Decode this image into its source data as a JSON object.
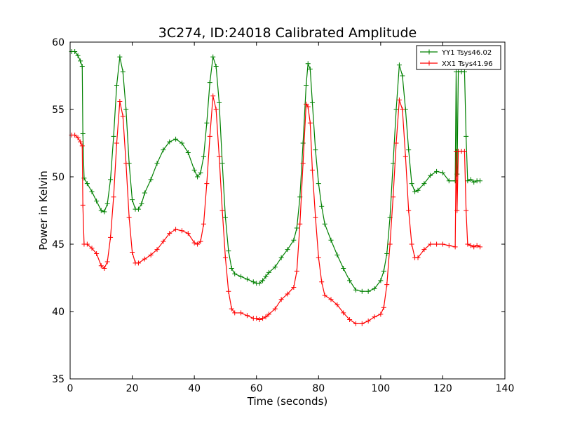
{
  "chart_data": {
    "type": "line",
    "title": "3C274, ID:24018 Calibrated Amplitude",
    "xlabel": "Time (seconds)",
    "ylabel": "Power in Kelvin",
    "xlim": [
      0,
      140
    ],
    "ylim": [
      35,
      60
    ],
    "xticks": [
      0,
      20,
      40,
      60,
      80,
      100,
      120,
      140
    ],
    "yticks": [
      35,
      40,
      45,
      50,
      55,
      60
    ],
    "grid": false,
    "legend_position": "top-right",
    "marker": "+",
    "series": [
      {
        "name": "YY1 Tsys46.02",
        "color": "#008000",
        "points": [
          [
            0.5,
            59.3
          ],
          [
            1.5,
            59.3
          ],
          [
            2.5,
            59.0
          ],
          [
            3.3,
            58.6
          ],
          [
            3.9,
            58.2
          ],
          [
            4.1,
            53.2
          ],
          [
            4.5,
            49.9
          ],
          [
            5.5,
            49.5
          ],
          [
            7,
            48.9
          ],
          [
            8.5,
            48.2
          ],
          [
            10,
            47.5
          ],
          [
            11,
            47.4
          ],
          [
            12,
            48.0
          ],
          [
            13,
            49.8
          ],
          [
            14,
            53.0
          ],
          [
            15,
            56.8
          ],
          [
            16,
            58.9
          ],
          [
            17,
            57.8
          ],
          [
            18,
            55.0
          ],
          [
            19,
            51.0
          ],
          [
            20,
            48.3
          ],
          [
            21,
            47.6
          ],
          [
            22,
            47.6
          ],
          [
            23,
            48.0
          ],
          [
            24,
            48.8
          ],
          [
            26,
            49.8
          ],
          [
            28,
            51.0
          ],
          [
            30,
            52.0
          ],
          [
            32,
            52.6
          ],
          [
            34,
            52.8
          ],
          [
            36,
            52.5
          ],
          [
            38,
            51.8
          ],
          [
            40,
            50.5
          ],
          [
            41,
            50.0
          ],
          [
            42,
            50.3
          ],
          [
            43,
            51.5
          ],
          [
            44,
            54.0
          ],
          [
            45,
            57.0
          ],
          [
            46,
            58.9
          ],
          [
            47,
            58.2
          ],
          [
            48,
            55.5
          ],
          [
            49,
            51.0
          ],
          [
            50,
            47.0
          ],
          [
            51,
            44.5
          ],
          [
            52,
            43.2
          ],
          [
            53,
            42.8
          ],
          [
            55,
            42.6
          ],
          [
            57,
            42.4
          ],
          [
            59,
            42.2
          ],
          [
            60,
            42.1
          ],
          [
            61,
            42.1
          ],
          [
            62,
            42.3
          ],
          [
            63,
            42.6
          ],
          [
            64,
            42.9
          ],
          [
            66,
            43.3
          ],
          [
            68,
            44.0
          ],
          [
            70,
            44.6
          ],
          [
            72,
            45.3
          ],
          [
            73,
            46.2
          ],
          [
            74,
            48.5
          ],
          [
            75,
            52.5
          ],
          [
            76,
            56.8
          ],
          [
            76.6,
            58.4
          ],
          [
            77.3,
            58.0
          ],
          [
            78,
            55.5
          ],
          [
            79,
            52.0
          ],
          [
            80,
            49.5
          ],
          [
            81,
            47.8
          ],
          [
            82,
            46.5
          ],
          [
            84,
            45.3
          ],
          [
            86,
            44.2
          ],
          [
            88,
            43.2
          ],
          [
            90,
            42.3
          ],
          [
            92,
            41.6
          ],
          [
            94,
            41.5
          ],
          [
            96,
            41.5
          ],
          [
            98,
            41.7
          ],
          [
            100,
            42.3
          ],
          [
            101,
            43.0
          ],
          [
            102,
            44.3
          ],
          [
            103,
            47.0
          ],
          [
            104,
            51.0
          ],
          [
            105,
            55.0
          ],
          [
            106,
            58.3
          ],
          [
            107,
            57.5
          ],
          [
            108,
            55.0
          ],
          [
            109,
            52.0
          ],
          [
            110,
            49.5
          ],
          [
            111,
            48.9
          ],
          [
            112,
            49.0
          ],
          [
            114,
            49.5
          ],
          [
            116,
            50.1
          ],
          [
            118,
            50.4
          ],
          [
            120,
            50.3
          ],
          [
            122,
            49.7
          ],
          [
            124,
            49.7
          ],
          [
            124.3,
            57.8
          ],
          [
            124.6,
            50.2
          ],
          [
            125,
            57.8
          ],
          [
            126,
            57.8
          ],
          [
            127,
            57.8
          ],
          [
            127.5,
            53.0
          ],
          [
            128,
            49.7
          ],
          [
            129,
            49.8
          ],
          [
            130,
            49.6
          ],
          [
            131,
            49.7
          ],
          [
            132,
            49.7
          ]
        ]
      },
      {
        "name": "XX1 Tsys41.96",
        "color": "#ff0000",
        "points": [
          [
            0.5,
            53.1
          ],
          [
            1.5,
            53.1
          ],
          [
            2.5,
            52.9
          ],
          [
            3.3,
            52.6
          ],
          [
            3.9,
            52.3
          ],
          [
            4.1,
            47.9
          ],
          [
            4.5,
            45.0
          ],
          [
            5.5,
            45.0
          ],
          [
            7,
            44.7
          ],
          [
            8.5,
            44.3
          ],
          [
            10,
            43.4
          ],
          [
            11,
            43.2
          ],
          [
            12,
            43.7
          ],
          [
            13,
            45.5
          ],
          [
            14,
            48.5
          ],
          [
            15,
            52.5
          ],
          [
            16,
            55.6
          ],
          [
            17,
            54.5
          ],
          [
            18,
            51.0
          ],
          [
            19,
            47.0
          ],
          [
            20,
            44.4
          ],
          [
            21,
            43.6
          ],
          [
            22,
            43.6
          ],
          [
            24,
            43.9
          ],
          [
            26,
            44.2
          ],
          [
            28,
            44.6
          ],
          [
            30,
            45.2
          ],
          [
            32,
            45.8
          ],
          [
            34,
            46.1
          ],
          [
            36,
            46.0
          ],
          [
            38,
            45.8
          ],
          [
            40,
            45.1
          ],
          [
            41,
            45.0
          ],
          [
            42,
            45.2
          ],
          [
            43,
            46.5
          ],
          [
            44,
            49.5
          ],
          [
            45,
            53.0
          ],
          [
            46,
            56.0
          ],
          [
            47,
            55.0
          ],
          [
            48,
            51.5
          ],
          [
            49,
            47.5
          ],
          [
            50,
            44.0
          ],
          [
            51,
            41.5
          ],
          [
            52,
            40.2
          ],
          [
            53,
            39.9
          ],
          [
            55,
            39.9
          ],
          [
            57,
            39.7
          ],
          [
            59,
            39.5
          ],
          [
            60,
            39.5
          ],
          [
            61,
            39.4
          ],
          [
            62,
            39.5
          ],
          [
            63,
            39.6
          ],
          [
            64,
            39.8
          ],
          [
            66,
            40.2
          ],
          [
            68,
            40.9
          ],
          [
            70,
            41.3
          ],
          [
            72,
            41.8
          ],
          [
            73,
            43.0
          ],
          [
            74,
            46.5
          ],
          [
            75,
            51.0
          ],
          [
            76,
            55.4
          ],
          [
            76.6,
            55.2
          ],
          [
            77.3,
            54.0
          ],
          [
            78,
            50.5
          ],
          [
            79,
            47.0
          ],
          [
            80,
            44.0
          ],
          [
            81,
            42.2
          ],
          [
            82,
            41.2
          ],
          [
            84,
            40.9
          ],
          [
            86,
            40.5
          ],
          [
            88,
            39.9
          ],
          [
            90,
            39.4
          ],
          [
            92,
            39.1
          ],
          [
            94,
            39.1
          ],
          [
            96,
            39.3
          ],
          [
            98,
            39.6
          ],
          [
            100,
            39.8
          ],
          [
            101,
            40.3
          ],
          [
            102,
            42.0
          ],
          [
            103,
            45.0
          ],
          [
            104,
            48.5
          ],
          [
            105,
            52.5
          ],
          [
            106,
            55.7
          ],
          [
            107,
            55.0
          ],
          [
            108,
            51.5
          ],
          [
            109,
            47.5
          ],
          [
            110,
            45.0
          ],
          [
            111,
            44.0
          ],
          [
            112,
            44.0
          ],
          [
            114,
            44.6
          ],
          [
            116,
            45.0
          ],
          [
            118,
            45.0
          ],
          [
            120,
            45.0
          ],
          [
            122,
            44.9
          ],
          [
            124,
            44.8
          ],
          [
            124.3,
            51.9
          ],
          [
            124.6,
            47.5
          ],
          [
            125,
            51.9
          ],
          [
            126,
            51.9
          ],
          [
            127,
            51.9
          ],
          [
            127.5,
            47.5
          ],
          [
            128,
            45.0
          ],
          [
            129,
            44.9
          ],
          [
            130,
            44.8
          ],
          [
            131,
            44.9
          ],
          [
            132,
            44.8
          ]
        ]
      }
    ]
  }
}
